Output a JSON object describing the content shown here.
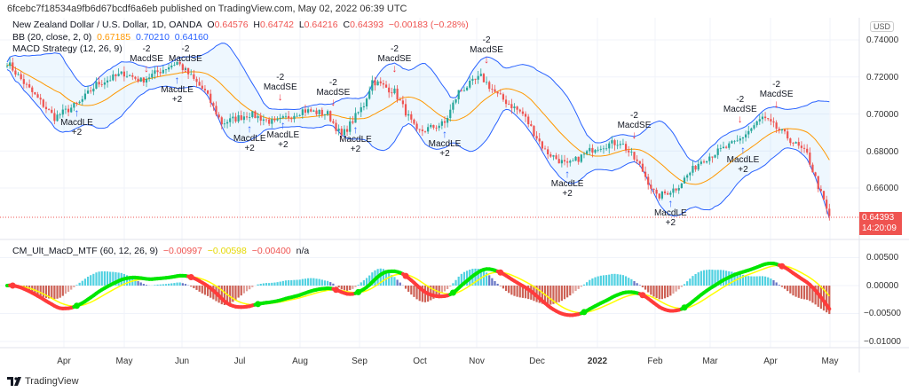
{
  "header": {
    "published": "6fcebc7f18534a9fb6d67bcdf6a6eb published on TradingView.com, May 02, 2022 06:39 UTC"
  },
  "symbol": {
    "name": "New Zealand Dollar / U.S. Dollar, 1D, OANDA",
    "o_label": "O",
    "o": "0.64576",
    "h_label": "H",
    "h": "0.64742",
    "l_label": "L",
    "l": "0.64216",
    "c_label": "C",
    "c": "0.64393",
    "change": "−0.00183 (−0.28%)"
  },
  "bb": {
    "label": "BB (20, close, 2, 0)",
    "basis": "0.67185",
    "upper": "0.70210",
    "lower": "0.64160"
  },
  "strategy": {
    "label": "MACD Strategy (12, 26, 9)"
  },
  "price_axis": {
    "currency": "USD",
    "ticks": [
      "0.74000",
      "0.72000",
      "0.70000",
      "0.68000",
      "0.66000"
    ],
    "last_price": "0.64393",
    "countdown": "14:20:09"
  },
  "indicator": {
    "label": "CM_Ult_MacD_MTF (60, 12, 26, 9)",
    "v1": "−0.00997",
    "v2": "−0.00598",
    "v3": "−0.00400",
    "v4": "n/a",
    "ticks": [
      "0.00500",
      "0.00000",
      "−0.00500",
      "−0.01000"
    ]
  },
  "time_axis": [
    "Apr",
    "May",
    "Jun",
    "Jul",
    "Aug",
    "Sep",
    "Oct",
    "Nov",
    "Dec",
    "2022",
    "Feb",
    "Mar",
    "Apr",
    "May"
  ],
  "footer": {
    "brand": "TradingView"
  },
  "colors": {
    "up": "#26a69a",
    "down": "#ef5350",
    "bb_basis": "#ff9800",
    "bb_band": "#2962ff",
    "macd_up": "#00e600",
    "macd_dn": "#ff3b3b",
    "signal": "#ffff00"
  },
  "price_keypoints": [
    [
      0,
      0.728
    ],
    [
      7,
      0.715
    ],
    [
      17,
      0.698
    ],
    [
      26,
      0.706
    ],
    [
      32,
      0.716
    ],
    [
      42,
      0.722
    ],
    [
      48,
      0.718
    ],
    [
      61,
      0.728
    ],
    [
      71,
      0.712
    ],
    [
      77,
      0.695
    ],
    [
      87,
      0.7
    ],
    [
      96,
      0.695
    ],
    [
      106,
      0.702
    ],
    [
      115,
      0.7
    ],
    [
      120,
      0.688
    ],
    [
      128,
      0.705
    ],
    [
      131,
      0.718
    ],
    [
      139,
      0.712
    ],
    [
      147,
      0.69
    ],
    [
      157,
      0.695
    ],
    [
      162,
      0.712
    ],
    [
      170,
      0.72
    ],
    [
      176,
      0.71
    ],
    [
      185,
      0.7
    ],
    [
      193,
      0.68
    ],
    [
      201,
      0.672
    ],
    [
      211,
      0.682
    ],
    [
      220,
      0.685
    ],
    [
      227,
      0.672
    ],
    [
      233,
      0.655
    ],
    [
      240,
      0.66
    ],
    [
      249,
      0.675
    ],
    [
      262,
      0.685
    ],
    [
      271,
      0.698
    ],
    [
      278,
      0.69
    ],
    [
      287,
      0.678
    ],
    [
      295,
      0.644
    ]
  ],
  "signals": [
    {
      "day": 25,
      "type": "LE",
      "label": "MacdLE",
      "qty": "+2"
    },
    {
      "day": 50,
      "type": "SE",
      "label": "MacdSE",
      "qty": "-2"
    },
    {
      "day": 64,
      "type": "SE",
      "label": "MacdSE",
      "qty": "-2"
    },
    {
      "day": 61,
      "type": "LE",
      "label": "MacdLE",
      "qty": "+2"
    },
    {
      "day": 87,
      "type": "LE",
      "label": "MacdLE",
      "qty": "+2"
    },
    {
      "day": 98,
      "type": "SE",
      "label": "MacdSE",
      "qty": "-2"
    },
    {
      "day": 99,
      "type": "LE",
      "label": "MacdLE",
      "qty": "+2"
    },
    {
      "day": 117,
      "type": "SE",
      "label": "MacdSE",
      "qty": "-2"
    },
    {
      "day": 125,
      "type": "LE",
      "label": "MacdLE",
      "qty": "+2"
    },
    {
      "day": 139,
      "type": "SE",
      "label": "MacdSE",
      "qty": "-2"
    },
    {
      "day": 157,
      "type": "LE",
      "label": "MacdLE",
      "qty": "+2"
    },
    {
      "day": 172,
      "type": "SE",
      "label": "MacdSE",
      "qty": "-2"
    },
    {
      "day": 201,
      "type": "LE",
      "label": "MacdLE",
      "qty": "+2"
    },
    {
      "day": 225,
      "type": "SE",
      "label": "MacdSE",
      "qty": "-2"
    },
    {
      "day": 238,
      "type": "LE",
      "label": "MacdLE",
      "qty": "+2"
    },
    {
      "day": 263,
      "type": "SE",
      "label": "MacdSE",
      "qty": "-2"
    },
    {
      "day": 264,
      "type": "LE",
      "label": "MacdLE",
      "qty": "+2"
    },
    {
      "day": 276,
      "type": "SE",
      "label": "MacdSE",
      "qty": "-2"
    }
  ]
}
